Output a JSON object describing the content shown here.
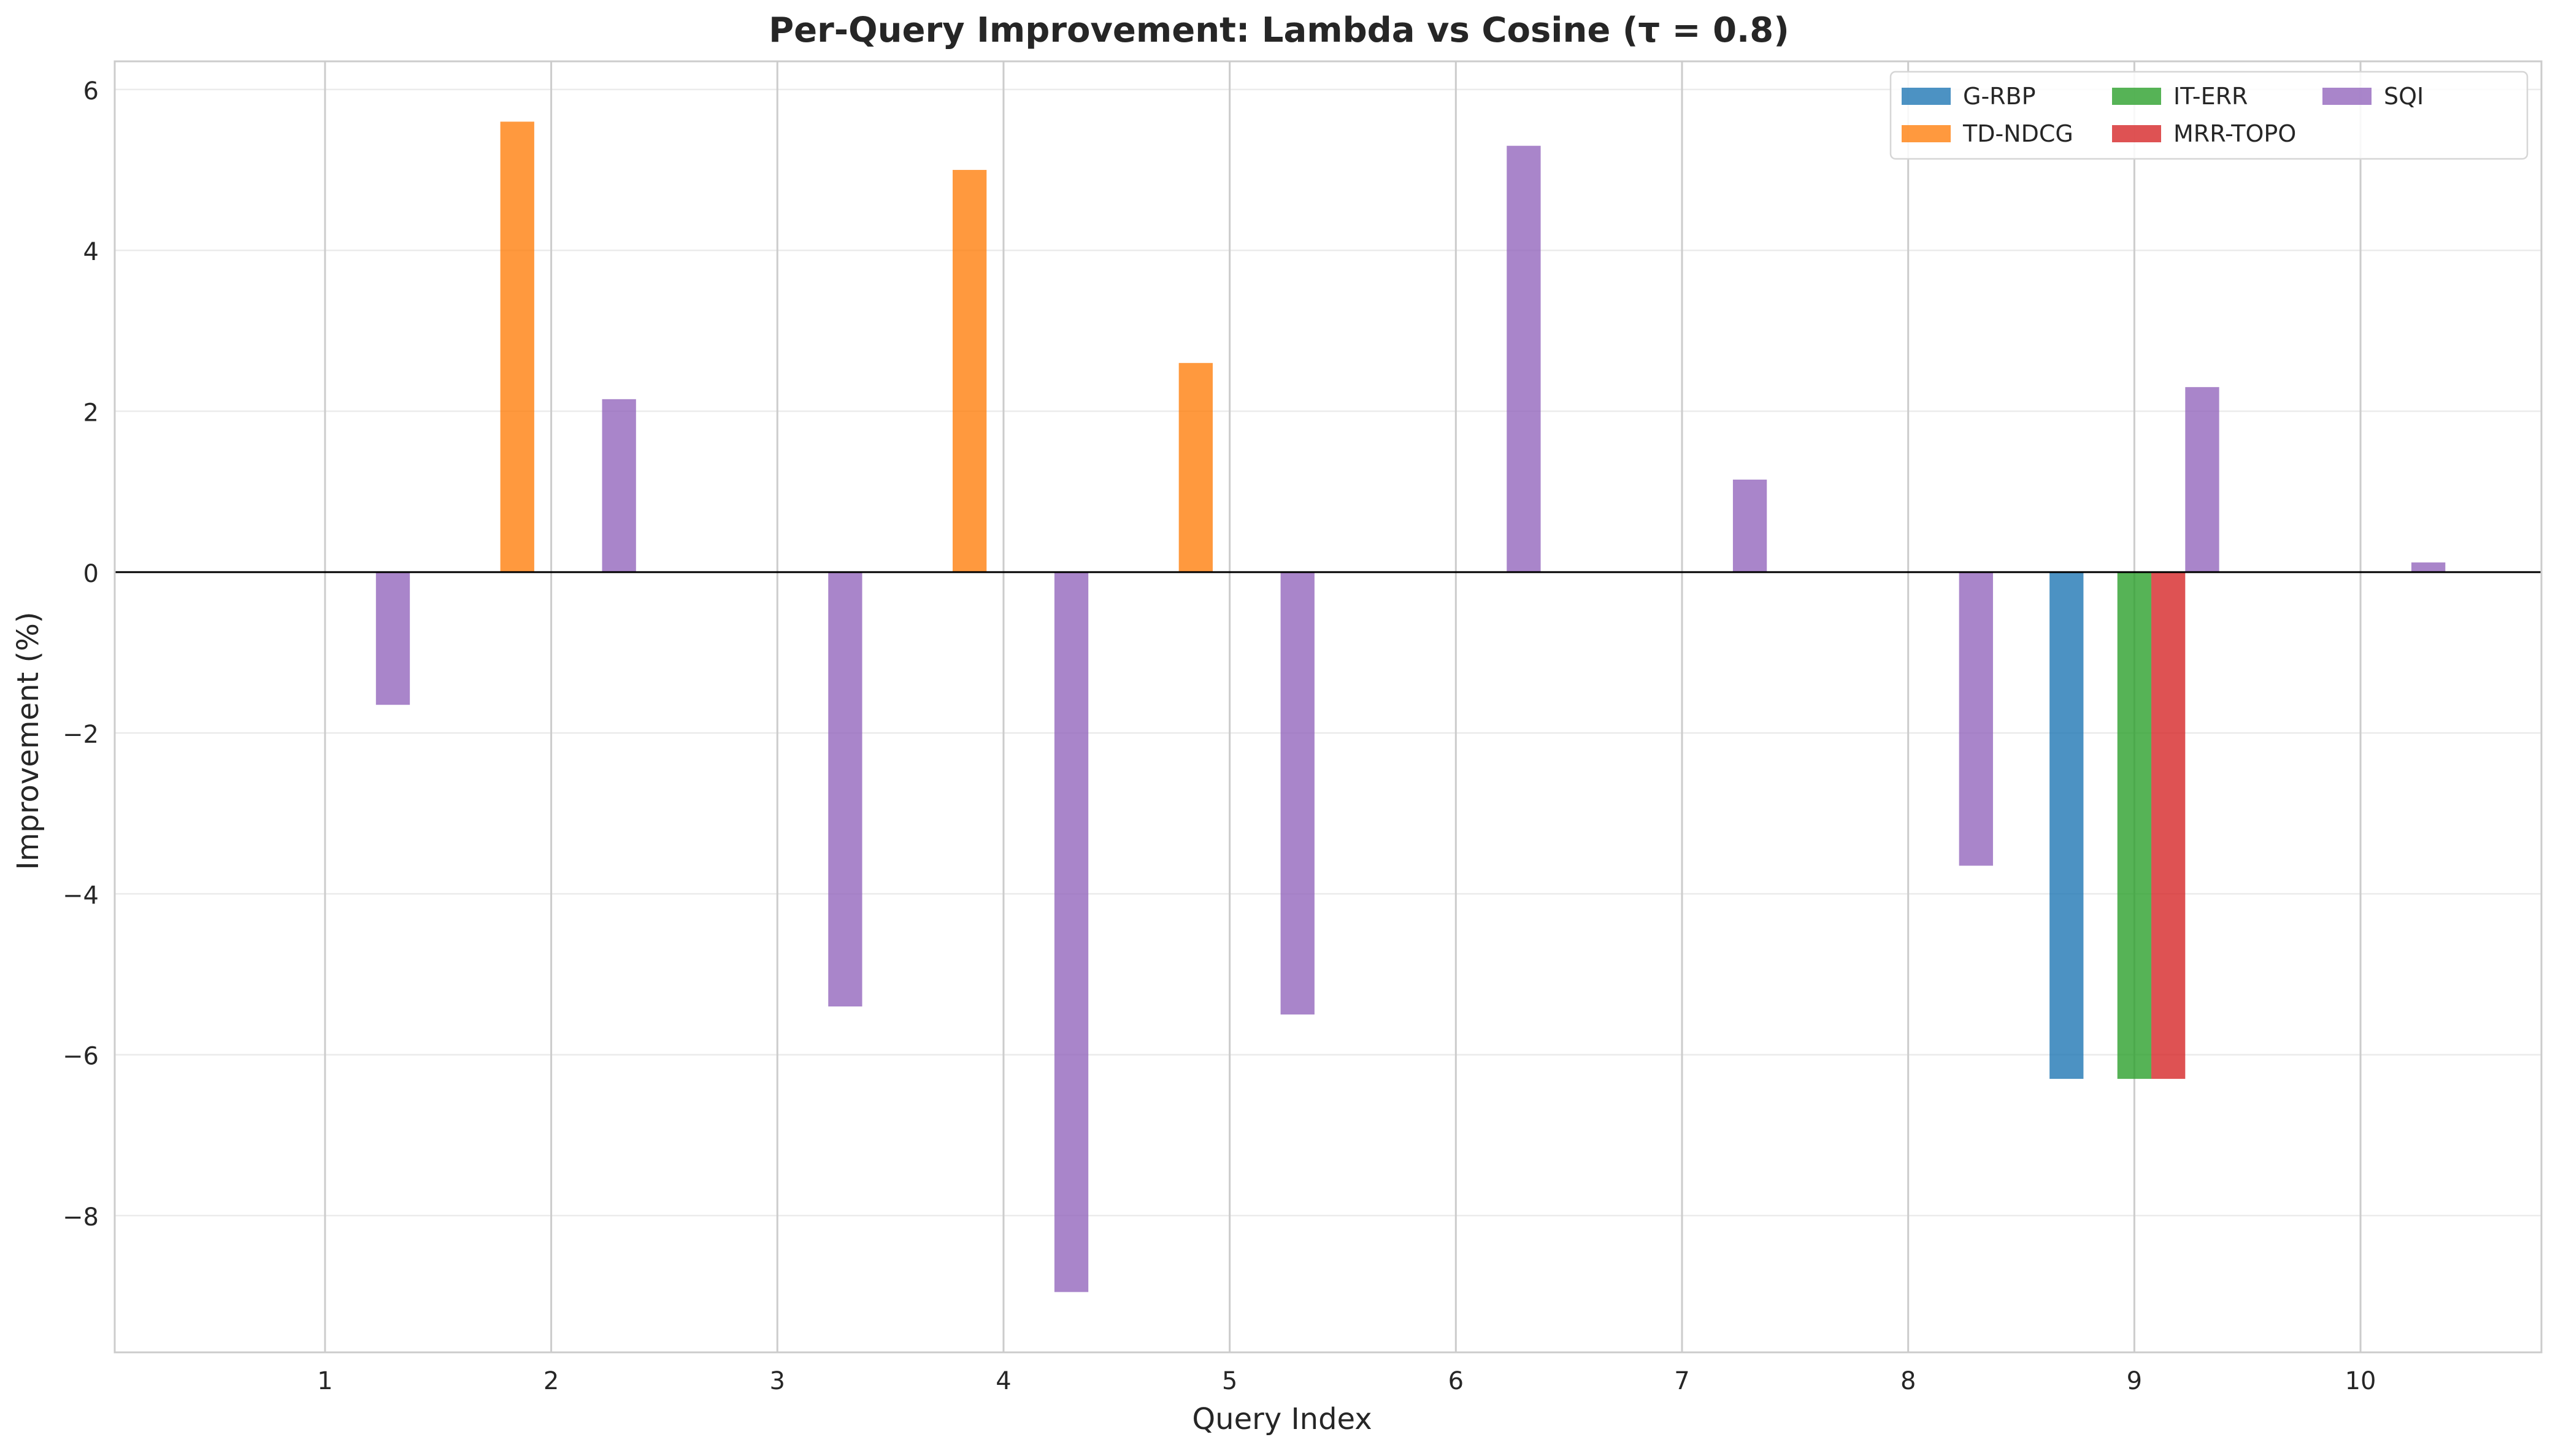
{
  "chart_data": {
    "type": "bar",
    "title": "Per-Query Improvement: Lambda vs Cosine (τ = 0.8)",
    "xlabel": "Query Index",
    "ylabel": "Improvement (%)",
    "categories": [
      "1",
      "2",
      "3",
      "4",
      "5",
      "6",
      "7",
      "8",
      "9",
      "10"
    ],
    "xlim": [
      0.07,
      10.8
    ],
    "ylim": [
      -9.7,
      6.35
    ],
    "yticks": [
      6,
      4,
      2,
      0,
      -2,
      -4,
      -6,
      -8
    ],
    "ytick_labels": [
      "6",
      "4",
      "2",
      "0",
      "−2",
      "−4",
      "−6",
      "−8"
    ],
    "grid": true,
    "legend_position": "top-right",
    "series": [
      {
        "name": "G-RBP",
        "color": "#1f77b4",
        "values": [
          0,
          0,
          0,
          0,
          0,
          0,
          0,
          0,
          -6.3,
          0
        ]
      },
      {
        "name": "TD-NDCG",
        "color": "#ff7f0e",
        "values": [
          0,
          5.6,
          0,
          5.0,
          2.6,
          0,
          0,
          0,
          0,
          0
        ]
      },
      {
        "name": "IT-ERR",
        "color": "#2ca02c",
        "values": [
          0,
          0,
          0,
          0,
          0,
          0,
          0,
          0,
          -6.3,
          0
        ]
      },
      {
        "name": "MRR-TOPO",
        "color": "#d62728",
        "values": [
          0,
          0,
          0,
          0,
          0,
          0,
          0,
          0,
          -6.3,
          0
        ]
      },
      {
        "name": "SQI",
        "color": "#9467bd",
        "values": [
          -1.65,
          2.15,
          -5.4,
          -8.95,
          -5.5,
          5.3,
          1.15,
          -3.65,
          2.3,
          0.12
        ]
      }
    ]
  }
}
